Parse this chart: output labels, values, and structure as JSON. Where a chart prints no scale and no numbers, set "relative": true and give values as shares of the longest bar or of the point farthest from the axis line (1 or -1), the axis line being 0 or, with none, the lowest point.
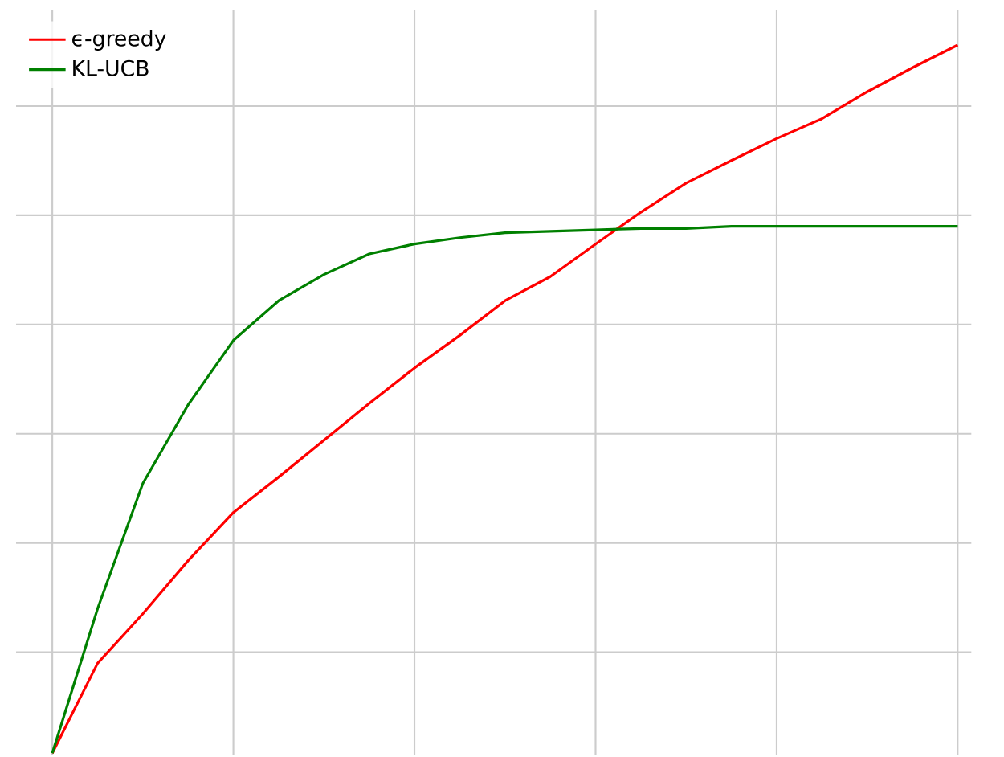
{
  "chart_data": {
    "type": "line",
    "relative": true,
    "grid": true,
    "legend": "top left",
    "categories": [
      null,
      null,
      null,
      null,
      null,
      null,
      null,
      null,
      null,
      null,
      null,
      null,
      null,
      null,
      null,
      null,
      null,
      null,
      null,
      null,
      null
    ],
    "series": [
      {
        "name": "ϵ-greedy",
        "color": "#ff0000",
        "values": [
          0,
          0.127,
          0.197,
          0.272,
          0.34,
          0.39,
          0.442,
          0.494,
          0.544,
          0.59,
          0.639,
          0.673,
          0.719,
          0.764,
          0.805,
          0.837,
          0.868,
          0.896,
          0.934,
          0.968,
          1
        ]
      },
      {
        "name": "KL-UCB",
        "color": "#008000",
        "values": [
          0,
          0.204,
          0.381,
          0.492,
          0.583,
          0.639,
          0.676,
          0.705,
          0.719,
          0.728,
          0.735,
          0.737,
          0.739,
          0.741,
          0.741,
          0.744,
          0.744,
          0.744,
          0.744,
          0.744,
          0.744
        ]
      }
    ]
  }
}
